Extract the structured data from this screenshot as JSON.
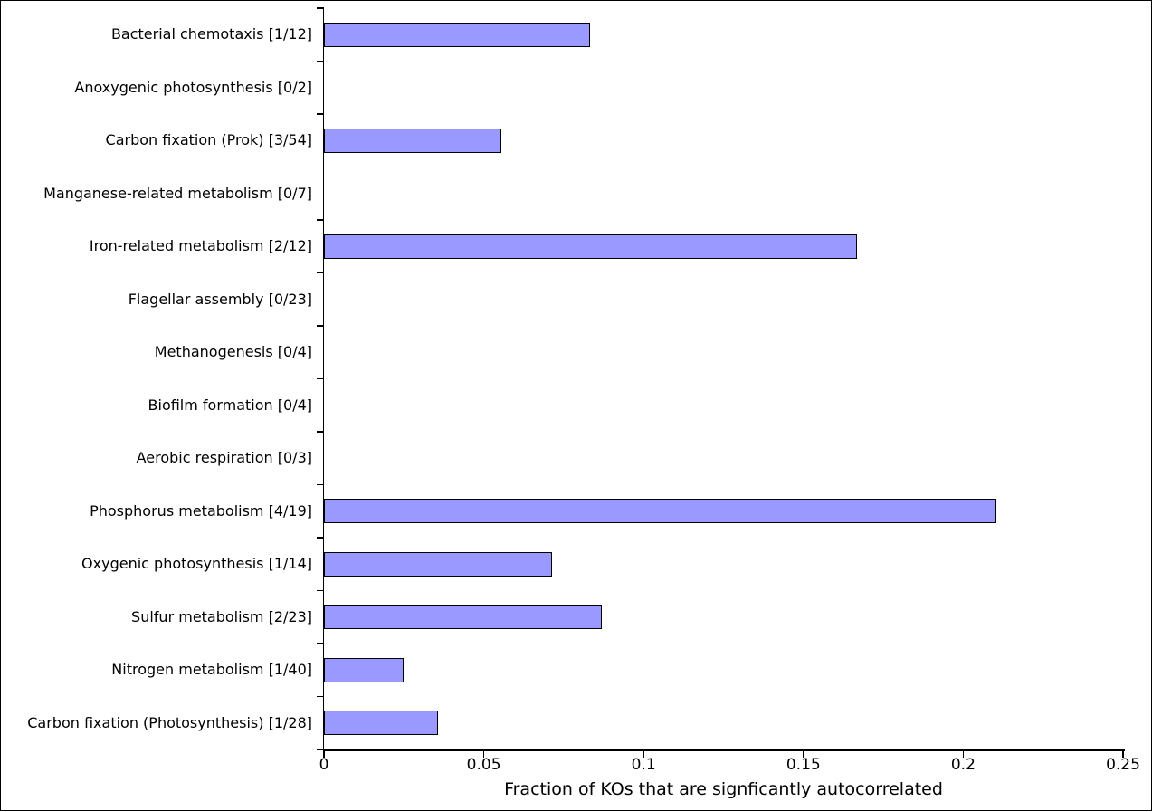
{
  "chart_data": {
    "type": "bar",
    "orientation": "horizontal",
    "title": "",
    "xlabel": "Fraction of KOs that are signficantly autocorrelated",
    "ylabel": "",
    "grid": false,
    "legend": null,
    "xlim": [
      0,
      0.25
    ],
    "xticks": [
      0,
      0.05,
      0.1,
      0.15,
      0.2,
      0.25
    ],
    "xtick_labels": [
      "0",
      "0.05",
      "0.1",
      "0.15",
      "0.2",
      "0.25"
    ],
    "categories": [
      "Bacterial chemotaxis [1/12]",
      "Anoxygenic photosynthesis [0/2]",
      "Carbon fixation (Prok) [3/54]",
      "Manganese-related metabolism [0/7]",
      "Iron-related metabolism [2/12]",
      "Flagellar assembly [0/23]",
      "Methanogenesis [0/4]",
      "Biofilm formation [0/4]",
      "Aerobic respiration [0/3]",
      "Phosphorus metabolism [4/19]",
      "Oxygenic photosynthesis [1/14]",
      "Sulfur metabolism [2/23]",
      "Nitrogen metabolism [1/40]",
      "Carbon fixation (Photosynthesis) [1/28]"
    ],
    "significant_counts": [
      1,
      0,
      3,
      0,
      2,
      0,
      0,
      0,
      0,
      4,
      1,
      2,
      1,
      1
    ],
    "total_counts": [
      12,
      2,
      54,
      7,
      12,
      23,
      4,
      4,
      3,
      19,
      14,
      23,
      40,
      28
    ],
    "values": [
      0.0833,
      0,
      0.0556,
      0,
      0.1667,
      0,
      0,
      0,
      0,
      0.2105,
      0.0714,
      0.087,
      0.025,
      0.0357
    ],
    "bar_color": "#9999ff",
    "bar_edge_color": "#000000",
    "background_color": "#ffffff"
  }
}
